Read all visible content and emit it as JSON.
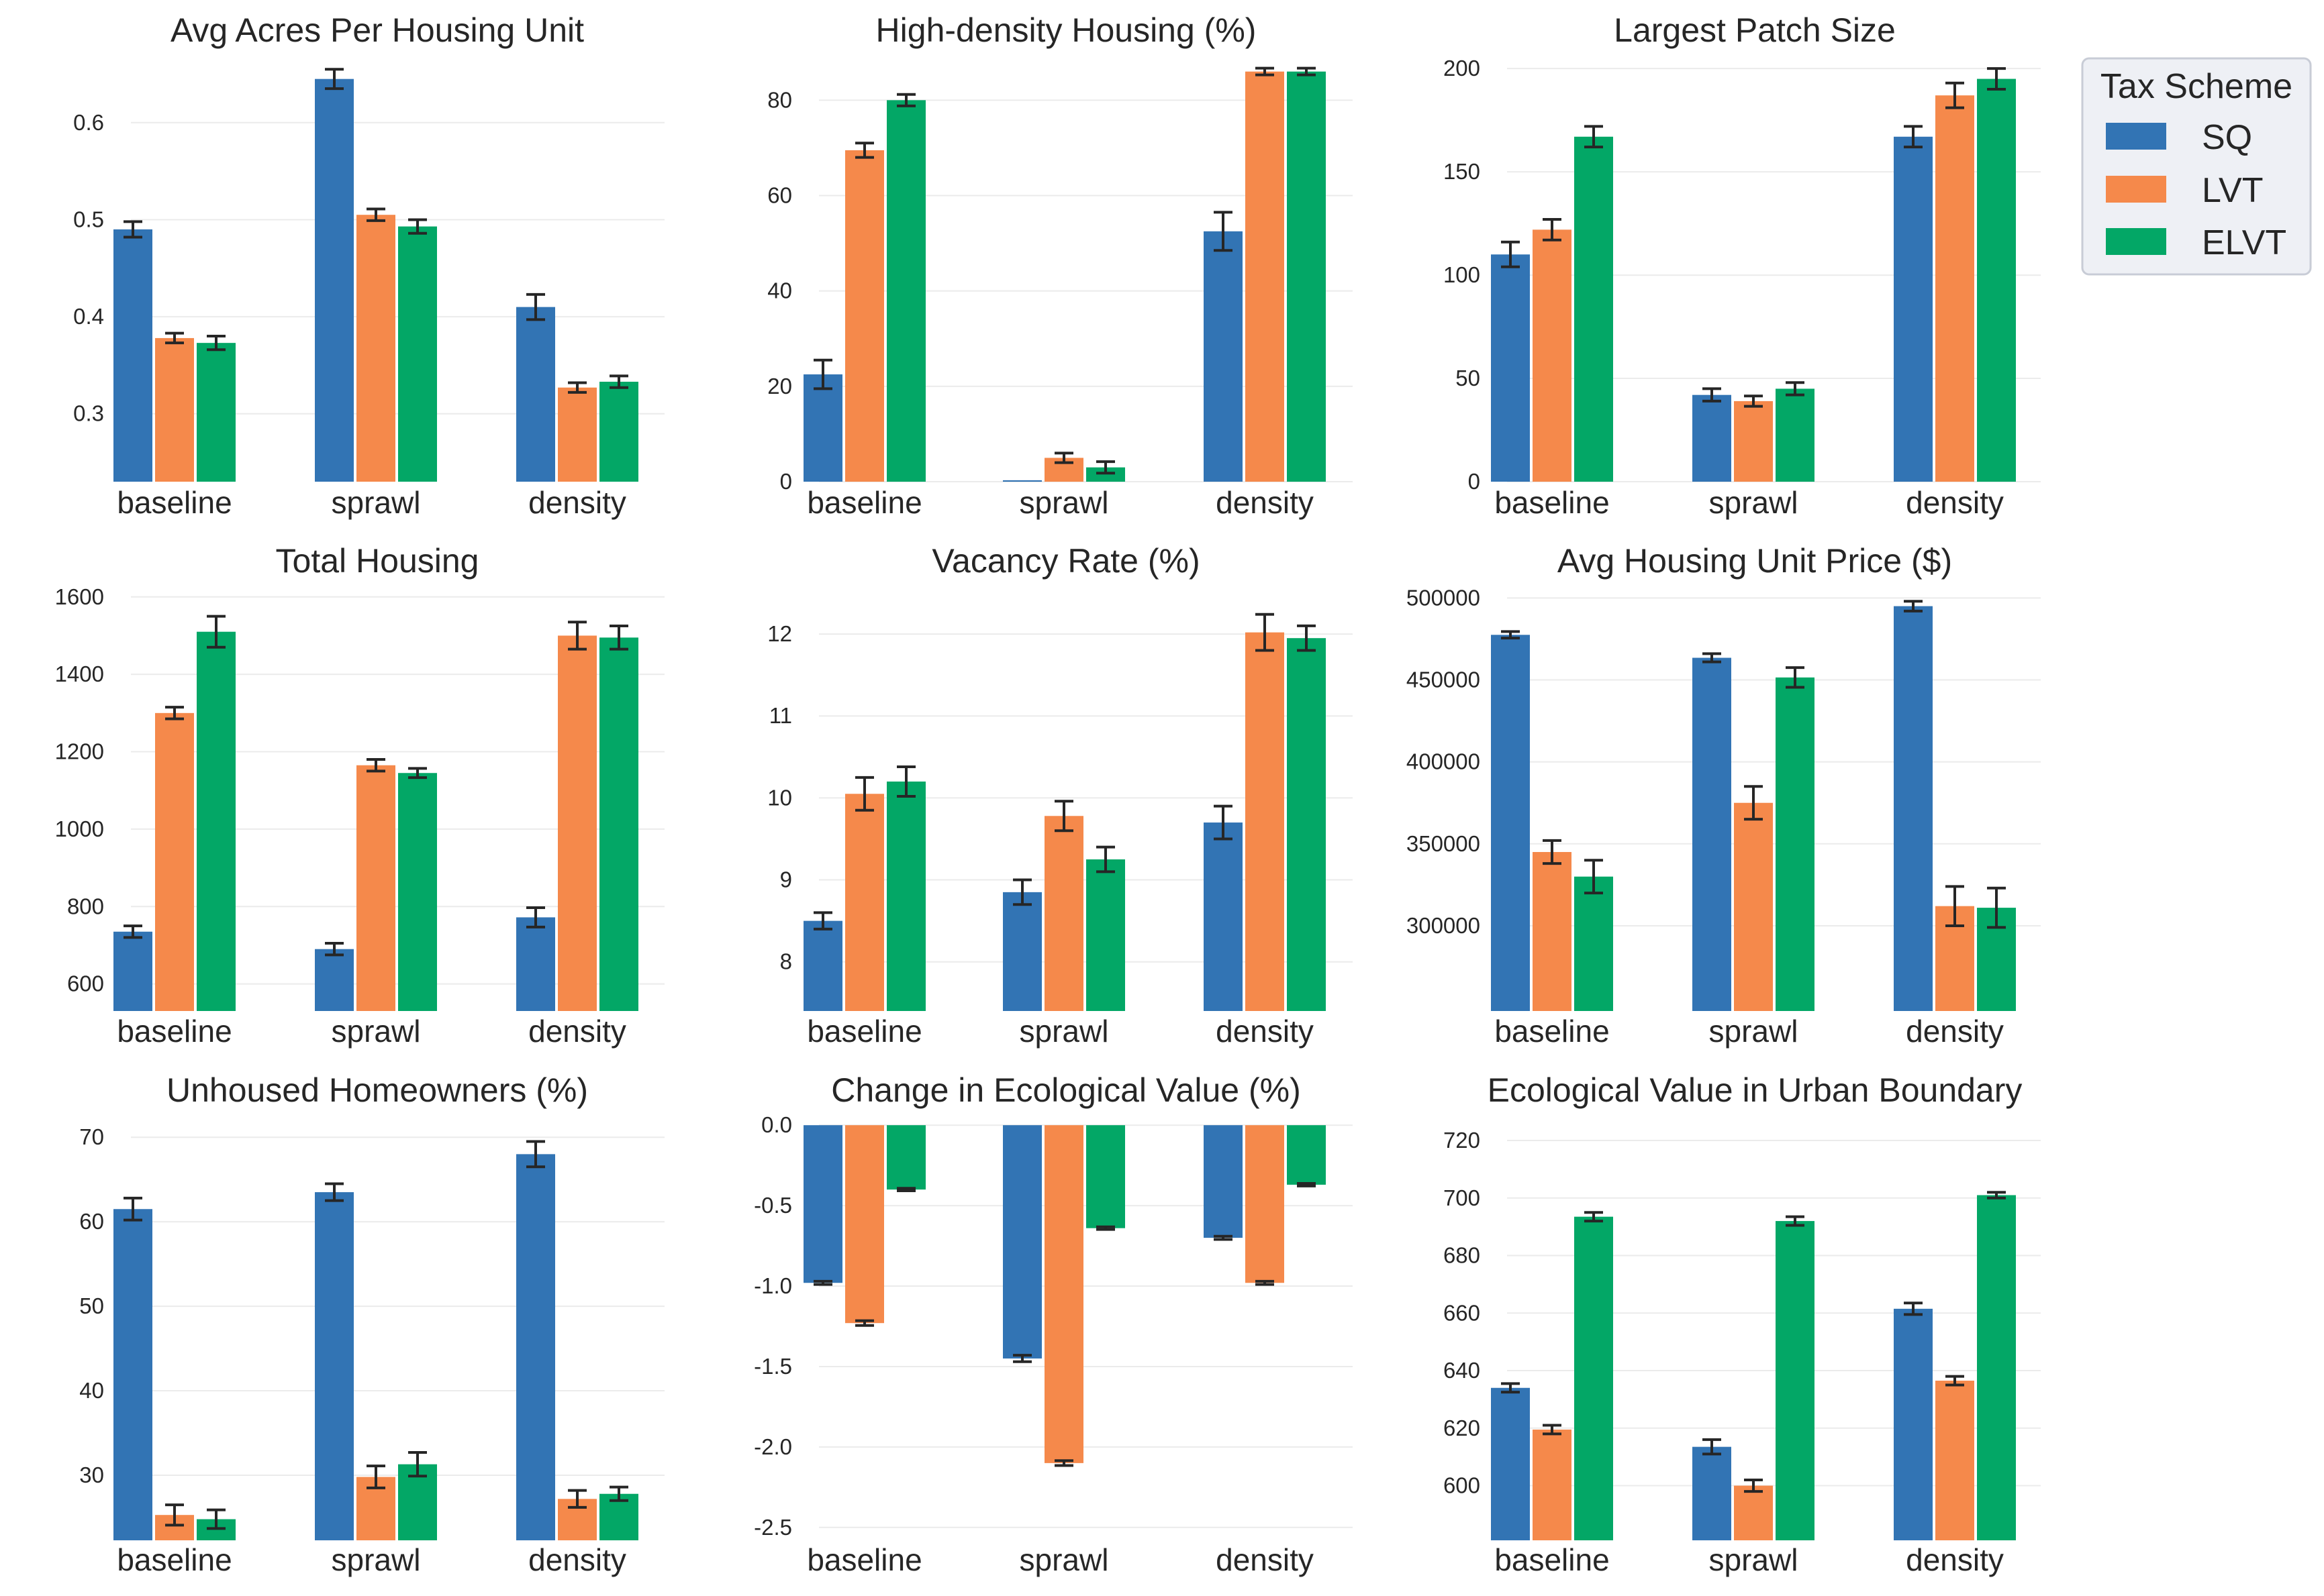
{
  "colors": {
    "SQ": "#3274b4",
    "LVT": "#f5894b",
    "ELVT": "#03a766",
    "errorbar": "#262626",
    "grid": "#ebebeb"
  },
  "legend": {
    "title": "Tax Scheme",
    "entries": [
      "SQ",
      "LVT",
      "ELVT"
    ]
  },
  "chart_data": [
    {
      "type": "bar",
      "title": "Avg Acres Per Housing Unit",
      "categories": [
        "baseline",
        "sprawl",
        "density"
      ],
      "series": [
        {
          "name": "SQ",
          "values": [
            0.49,
            0.645,
            0.41
          ],
          "errors": [
            0.008,
            0.01,
            0.013
          ]
        },
        {
          "name": "LVT",
          "values": [
            0.378,
            0.505,
            0.327
          ],
          "errors": [
            0.005,
            0.006,
            0.005
          ]
        },
        {
          "name": "ELVT",
          "values": [
            0.373,
            0.493,
            0.333
          ],
          "errors": [
            0.007,
            0.007,
            0.006
          ]
        }
      ],
      "ylim": [
        0.23,
        0.66
      ],
      "ybase": 0.23,
      "yticks": [
        0.3,
        0.4,
        0.5,
        0.6
      ],
      "yticklabels": [
        "0.3",
        "0.4",
        "0.5",
        "0.6"
      ]
    },
    {
      "type": "bar",
      "title": "High-density Housing (%)",
      "categories": [
        "baseline",
        "sprawl",
        "density"
      ],
      "series": [
        {
          "name": "SQ",
          "values": [
            22.5,
            0.3,
            52.5
          ],
          "errors": [
            3,
            0,
            4
          ]
        },
        {
          "name": "LVT",
          "values": [
            69.5,
            5,
            86
          ],
          "errors": [
            1.5,
            1,
            0.7
          ]
        },
        {
          "name": "ELVT",
          "values": [
            80,
            3,
            86
          ],
          "errors": [
            1.2,
            1.2,
            0.7
          ]
        }
      ],
      "ylim": [
        0,
        87.5
      ],
      "ybase": 0,
      "yticks": [
        0,
        20,
        40,
        60,
        80
      ],
      "yticklabels": [
        "0",
        "20",
        "40",
        "60",
        "80"
      ]
    },
    {
      "type": "bar",
      "title": "Largest Patch Size",
      "categories": [
        "baseline",
        "sprawl",
        "density"
      ],
      "series": [
        {
          "name": "SQ",
          "values": [
            110,
            42,
            167
          ],
          "errors": [
            6,
            3,
            5
          ]
        },
        {
          "name": "LVT",
          "values": [
            122,
            39,
            187
          ],
          "errors": [
            5,
            2.5,
            6
          ]
        },
        {
          "name": "ELVT",
          "values": [
            167,
            45,
            195
          ],
          "errors": [
            5,
            3,
            5
          ]
        }
      ],
      "ylim": [
        0,
        202
      ],
      "ybase": 0,
      "yticks": [
        0,
        50,
        100,
        150,
        200
      ],
      "yticklabels": [
        "0",
        "50",
        "100",
        "150",
        "200"
      ]
    },
    {
      "type": "bar",
      "title": "Total Housing",
      "categories": [
        "baseline",
        "sprawl",
        "density"
      ],
      "series": [
        {
          "name": "SQ",
          "values": [
            735,
            690,
            772
          ],
          "errors": [
            15,
            15,
            25
          ]
        },
        {
          "name": "LVT",
          "values": [
            1300,
            1165,
            1500
          ],
          "errors": [
            15,
            15,
            35
          ]
        },
        {
          "name": "ELVT",
          "values": [
            1510,
            1145,
            1495
          ],
          "errors": [
            40,
            12,
            30
          ]
        }
      ],
      "ylim": [
        530,
        1610
      ],
      "ybase": 530,
      "yticks": [
        600,
        800,
        1000,
        1200,
        1400,
        1600
      ],
      "yticklabels": [
        "600",
        "800",
        "1000",
        "1200",
        "1400",
        "1600"
      ]
    },
    {
      "type": "bar",
      "title": "Vacancy Rate (%)",
      "categories": [
        "baseline",
        "sprawl",
        "density"
      ],
      "series": [
        {
          "name": "SQ",
          "values": [
            8.5,
            8.85,
            9.7
          ],
          "errors": [
            0.1,
            0.15,
            0.2
          ]
        },
        {
          "name": "LVT",
          "values": [
            10.05,
            9.78,
            12.02
          ],
          "errors": [
            0.2,
            0.18,
            0.22
          ]
        },
        {
          "name": "ELVT",
          "values": [
            10.2,
            9.25,
            11.95
          ],
          "errors": [
            0.18,
            0.15,
            0.15
          ]
        }
      ],
      "ylim": [
        7.4,
        12.5
      ],
      "ybase": 7.4,
      "yticks": [
        8,
        9,
        10,
        11,
        12
      ],
      "yticklabels": [
        "8",
        "9",
        "10",
        "11",
        "12"
      ]
    },
    {
      "type": "bar",
      "title": "Avg Housing Unit Price ($)",
      "categories": [
        "baseline",
        "sprawl",
        "density"
      ],
      "series": [
        {
          "name": "SQ",
          "values": [
            477500,
            463500,
            495000
          ],
          "errors": [
            2000,
            2500,
            3000
          ]
        },
        {
          "name": "LVT",
          "values": [
            345000,
            375000,
            312000
          ],
          "errors": [
            7000,
            10000,
            12000
          ]
        },
        {
          "name": "ELVT",
          "values": [
            330000,
            451500,
            311000
          ],
          "errors": [
            10000,
            6000,
            12000
          ]
        }
      ],
      "ylim": [
        248000,
        503000
      ],
      "ybase": 248000,
      "yticks": [
        300000,
        350000,
        400000,
        450000,
        500000
      ],
      "yticklabels": [
        "300000",
        "350000",
        "400000",
        "450000",
        "500000"
      ]
    },
    {
      "type": "bar",
      "title": "Unhoused Homeowners (%)",
      "categories": [
        "baseline",
        "sprawl",
        "density"
      ],
      "series": [
        {
          "name": "SQ",
          "values": [
            61.5,
            63.5,
            68
          ],
          "errors": [
            1.3,
            1,
            1.5
          ]
        },
        {
          "name": "LVT",
          "values": [
            25.3,
            29.8,
            27.2
          ],
          "errors": [
            1.2,
            1.3,
            1
          ]
        },
        {
          "name": "ELVT",
          "values": [
            24.8,
            31.3,
            27.8
          ],
          "errors": [
            1.1,
            1.4,
            0.8
          ]
        }
      ],
      "ylim": [
        22.3,
        72
      ],
      "ybase": 22.3,
      "yticks": [
        30,
        40,
        50,
        60,
        70
      ],
      "yticklabels": [
        "30",
        "40",
        "50",
        "60",
        "70"
      ]
    },
    {
      "type": "bar",
      "title": "Change in Ecological Value (%)",
      "categories": [
        "baseline",
        "sprawl",
        "density"
      ],
      "series": [
        {
          "name": "SQ",
          "values": [
            -0.98,
            -1.45,
            -0.7
          ],
          "errors": [
            0.01,
            0.02,
            0.01
          ]
        },
        {
          "name": "LVT",
          "values": [
            -1.23,
            -2.1,
            -0.98
          ],
          "errors": [
            0.015,
            0.015,
            0.01
          ]
        },
        {
          "name": "ELVT",
          "values": [
            -0.4,
            -0.64,
            -0.37
          ],
          "errors": [
            0.008,
            0.008,
            0.008
          ]
        }
      ],
      "ylim": [
        -2.58,
        0.03
      ],
      "ybase": 0,
      "yticks": [
        0,
        -0.5,
        -1,
        -1.5,
        -2,
        -2.5
      ],
      "yticklabels": [
        "0.0",
        "-0.5",
        "-1.0",
        "-1.5",
        "-2.0",
        "-2.5"
      ]
    },
    {
      "type": "bar",
      "title": "Ecological Value in Urban Boundary",
      "categories": [
        "baseline",
        "sprawl",
        "density"
      ],
      "series": [
        {
          "name": "SQ",
          "values": [
            634,
            613.5,
            661.5
          ],
          "errors": [
            1.5,
            2.5,
            2
          ]
        },
        {
          "name": "LVT",
          "values": [
            619.5,
            600,
            636.5
          ],
          "errors": [
            1.5,
            2,
            1.5
          ]
        },
        {
          "name": "ELVT",
          "values": [
            693.5,
            692,
            701
          ],
          "errors": [
            1.5,
            1.5,
            1
          ]
        }
      ],
      "ylim": [
        581,
        727
      ],
      "ybase": 581,
      "yticks": [
        600,
        620,
        640,
        660,
        680,
        700,
        720
      ],
      "yticklabels": [
        "600",
        "620",
        "640",
        "660",
        "680",
        "700",
        "720"
      ]
    }
  ]
}
